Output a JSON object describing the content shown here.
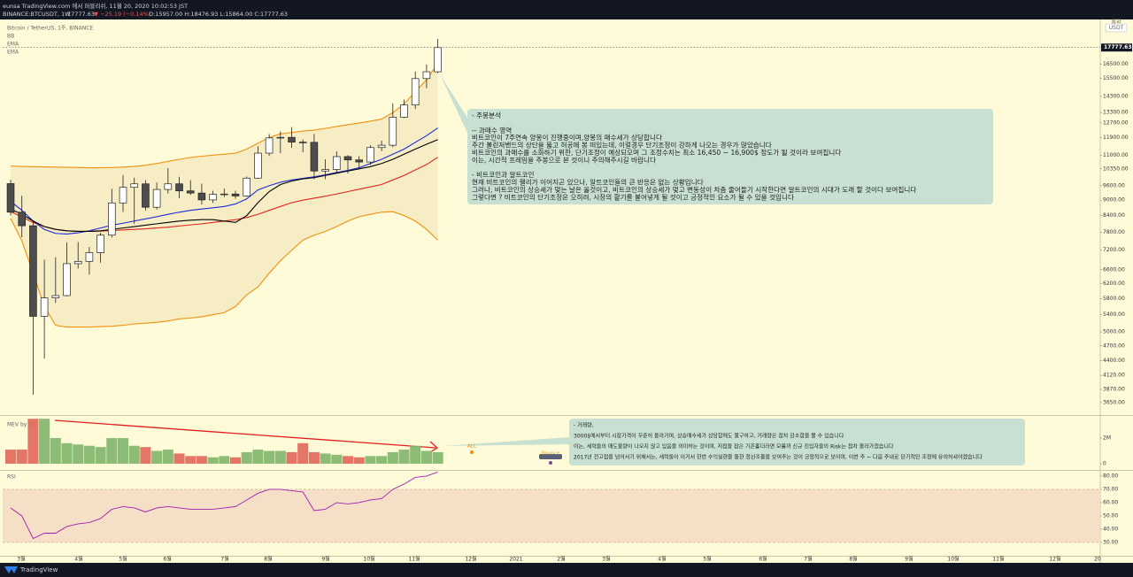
{
  "header": {
    "line1": "eunsa TradingView.com 에서 퍼블리쉬, 11월 20, 2020 10:02:53 JST",
    "symbol": "BINANCE:BTCUSDT, 1W",
    "price": "17777.63",
    "change": "▼ −25.19 (−0.14%)",
    "ohlc": "O:15957.00 H:18476.93 L:15864.00 C:17777.63",
    "currency_caption": "통화",
    "currency": "USDT"
  },
  "chart_data": [
    {
      "type": "candlestick",
      "title": "Bitcoin / TetherUS, 1주, BINANCE",
      "log_scale": true,
      "grid": false,
      "categories": [
        null,
        null,
        null,
        null,
        null,
        null,
        null,
        null,
        null,
        null,
        null,
        null,
        null,
        null,
        null,
        null,
        null,
        null,
        null,
        null,
        null,
        null,
        null,
        null,
        null,
        null,
        null,
        null,
        null,
        null,
        null,
        null,
        null,
        null,
        null,
        null,
        null,
        null,
        null
      ],
      "open": [
        9690,
        8530,
        8030,
        5360,
        5820,
        5880,
        6780,
        6850,
        7120,
        7700,
        8890,
        9530,
        9680,
        8720,
        9440,
        9680,
        9380,
        9290,
        9010,
        9240,
        9250,
        9170,
        9930,
        11100,
        11880,
        11910,
        11660,
        11650,
        10250,
        10320,
        10930,
        10770,
        10670,
        11380,
        11500,
        13030,
        13760,
        15480,
        15957
      ],
      "high": [
        9860,
        9180,
        8180,
        6900,
        6980,
        7460,
        7470,
        7300,
        7780,
        9470,
        10070,
        9950,
        9840,
        9740,
        10380,
        9990,
        9840,
        9690,
        9380,
        9480,
        9390,
        10000,
        11450,
        12090,
        12230,
        12470,
        11800,
        12090,
        10800,
        11180,
        11000,
        10950,
        11500,
        11730,
        13860,
        14100,
        15970,
        16480,
        18476.93
      ],
      "low": [
        8410,
        7630,
        3780,
        4440,
        5690,
        5860,
        6640,
        6460,
        6810,
        7620,
        8540,
        8100,
        8600,
        8630,
        9270,
        9080,
        9210,
        8830,
        8890,
        9130,
        9060,
        9140,
        9900,
        10960,
        11100,
        11370,
        11150,
        9880,
        9880,
        10200,
        10140,
        10370,
        10530,
        11200,
        11400,
        12980,
        13520,
        14830,
        15864
      ],
      "close": [
        8530,
        8030,
        5360,
        5820,
        5880,
        6780,
        6850,
        7120,
        7700,
        8890,
        9530,
        9680,
        8720,
        9440,
        9680,
        9380,
        9290,
        9010,
        9240,
        9250,
        9170,
        9930,
        11100,
        11880,
        11910,
        11660,
        11650,
        10250,
        10320,
        10930,
        10770,
        10670,
        11380,
        11500,
        13030,
        13760,
        15480,
        15960,
        17777.63
      ],
      "up_color": "#ffffff",
      "down_color": "#4d4d4d",
      "outline_color": "#222222",
      "series": [
        {
          "name": "BB",
          "color": "#e0251f",
          "band_color": "#f0900f",
          "fill": "#f6edc4",
          "values": [
            8550,
            8350,
            8150,
            8000,
            7900,
            7850,
            7830,
            7830,
            7840,
            7860,
            7880,
            7900,
            7920,
            7950,
            7980,
            8020,
            8060,
            8100,
            8150,
            8200,
            8250,
            8330,
            8450,
            8600,
            8750,
            8900,
            9000,
            9080,
            9160,
            9250,
            9350,
            9450,
            9550,
            9650,
            9850,
            10050,
            10300,
            10550,
            10900
          ],
          "upper": [
            10480,
            10460,
            10450,
            10440,
            10430,
            10420,
            10410,
            10400,
            10400,
            10410,
            10430,
            10460,
            10520,
            10600,
            10700,
            10800,
            10890,
            10950,
            11000,
            11050,
            11100,
            11300,
            11600,
            11900,
            12100,
            12170,
            12250,
            12300,
            12400,
            12500,
            12600,
            12700,
            12800,
            12920,
            13300,
            13820,
            14600,
            15400,
            16560
          ],
          "lower": [
            8300,
            7500,
            6500,
            5600,
            5150,
            5110,
            5110,
            5110,
            5120,
            5130,
            5150,
            5180,
            5200,
            5220,
            5250,
            5300,
            5320,
            5350,
            5400,
            5450,
            5600,
            5900,
            6110,
            6500,
            6870,
            7200,
            7530,
            7700,
            7830,
            8000,
            8200,
            8360,
            8450,
            8530,
            8550,
            8400,
            8200,
            7900,
            7530
          ]
        },
        {
          "name": "EMA",
          "color": "#1c2bd8",
          "values": [
            8950,
            8600,
            8200,
            7900,
            7760,
            7740,
            7780,
            7850,
            7950,
            8050,
            8120,
            8200,
            8280,
            8360,
            8450,
            8530,
            8600,
            8650,
            8700,
            8750,
            8850,
            9050,
            9420,
            9600,
            9750,
            9850,
            9920,
            9990,
            10080,
            10180,
            10280,
            10400,
            10600,
            10800,
            11050,
            11300,
            11650,
            12000,
            12420
          ]
        },
        {
          "name": "EMA",
          "color": "#000000",
          "values": [
            8650,
            8450,
            8200,
            8000,
            7900,
            7850,
            7830,
            7830,
            7850,
            7900,
            7950,
            8000,
            8050,
            8100,
            8150,
            8200,
            8230,
            8250,
            8250,
            8200,
            8150,
            8400,
            8900,
            9350,
            9650,
            9800,
            9900,
            9950,
            10050,
            10150,
            10250,
            10350,
            10450,
            10600,
            10800,
            11050,
            11300,
            11550,
            11790
          ]
        }
      ],
      "xlim": [
        -0.71,
        96.93
      ],
      "ylim": [
        3465,
        20150
      ],
      "yticks": [
        {
          "value": 16500,
          "label": "16500.00"
        },
        {
          "value": 15500,
          "label": "15500.00"
        },
        {
          "value": 14300,
          "label": "14300.00"
        },
        {
          "value": 13300,
          "label": "13300.00"
        },
        {
          "value": 12700,
          "label": "12700.00"
        },
        {
          "value": 11900,
          "label": "11900.00"
        },
        {
          "value": 11000,
          "label": "11000.00"
        },
        {
          "value": 10350,
          "label": "10350.00"
        },
        {
          "value": 9600,
          "label": "9600.00"
        },
        {
          "value": 9000,
          "label": "9000.00"
        },
        {
          "value": 8400,
          "label": "8400.00"
        },
        {
          "value": 7800,
          "label": "7800.00"
        },
        {
          "value": 7200,
          "label": "7200.00"
        },
        {
          "value": 6600,
          "label": "6600.00"
        },
        {
          "value": 6200,
          "label": "6200.00"
        },
        {
          "value": 5800,
          "label": "5800.00"
        },
        {
          "value": 5400,
          "label": "5400.00"
        },
        {
          "value": 5000,
          "label": "5000.00"
        },
        {
          "value": 4700,
          "label": "4700.00"
        },
        {
          "value": 4400,
          "label": "4400.00"
        },
        {
          "value": 4120,
          "label": "4120.00"
        },
        {
          "value": 3870,
          "label": "3870.00"
        },
        {
          "value": 3650,
          "label": "3650.00"
        }
      ]
    },
    {
      "type": "bar",
      "title": "MEV by PE",
      "up_color": "#7fb56c",
      "down_color": "#e0675b",
      "values": [
        1100000,
        1100000,
        3500000,
        3500000,
        2000000,
        1600000,
        1500000,
        1400000,
        1300000,
        2000000,
        2000000,
        1400000,
        1300000,
        1000000,
        1100000,
        800000,
        600000,
        600000,
        500000,
        600000,
        500000,
        900000,
        1100000,
        1000000,
        1000000,
        900000,
        1600000,
        900000,
        800000,
        700000,
        600000,
        500000,
        600000,
        600000,
        900000,
        1100000,
        1400000,
        1000000,
        900000
      ],
      "ylim": [
        -410000,
        3720000
      ],
      "yticks": [
        0,
        {
          "value": 2000000,
          "label": "2M"
        }
      ]
    },
    {
      "type": "line",
      "title": "RSI",
      "color": "#a020b0",
      "band": [
        30,
        70
      ],
      "band_color": "#f5dfc6",
      "values": [
        56,
        50,
        33,
        37,
        37,
        42,
        44,
        45,
        48,
        55,
        57,
        56,
        53,
        56,
        57,
        56,
        55,
        55,
        55,
        56,
        57,
        62,
        67,
        70,
        70,
        69,
        68,
        54,
        55,
        60,
        59,
        60,
        62,
        63,
        70,
        74,
        79,
        80,
        83
      ],
      "ylim": [
        20,
        83.3
      ],
      "yticks": [
        {
          "value": 80,
          "label": "80.00"
        },
        {
          "value": 70,
          "label": "70.00"
        },
        {
          "value": 60,
          "label": "60.00"
        },
        {
          "value": 50,
          "label": "50.00"
        },
        {
          "value": 40,
          "label": "40.00"
        },
        {
          "value": 30,
          "label": "30.00"
        }
      ],
      "xlim": [
        -0.71,
        96.93
      ],
      "xticks": [
        {
          "value": 0.94,
          "label": "3월"
        },
        {
          "value": 6.06,
          "label": "4월"
        },
        {
          "value": 10.0,
          "label": "5월"
        },
        {
          "value": 13.94,
          "label": "6월"
        },
        {
          "value": 19.06,
          "label": "7월"
        },
        {
          "value": 22.91,
          "label": "8월"
        },
        {
          "value": 28.03,
          "label": "9월"
        },
        {
          "value": 31.89,
          "label": "10월"
        },
        {
          "value": 35.91,
          "label": "11월"
        },
        {
          "value": 40.94,
          "label": "12월"
        },
        {
          "value": 44.96,
          "label": "2021"
        },
        {
          "value": 48.98,
          "label": "2월"
        },
        {
          "value": 52.99,
          "label": "3월"
        },
        {
          "value": 57.95,
          "label": "4월"
        },
        {
          "value": 61.97,
          "label": "5월"
        },
        {
          "value": 66.93,
          "label": "6월"
        },
        {
          "value": 70.94,
          "label": "7월"
        },
        {
          "value": 74.96,
          "label": "8월"
        },
        {
          "value": 79.92,
          "label": "9월"
        },
        {
          "value": 83.86,
          "label": "10월"
        },
        {
          "value": 87.87,
          "label": "11월"
        },
        {
          "value": 92.91,
          "label": "12월"
        },
        {
          "value": 96.69,
          "label": "20"
        }
      ]
    }
  ],
  "legend_labels": [
    "BB",
    "EMA",
    "EMA"
  ],
  "annotations": [
    {
      "blocks": [
        [
          "- 주봉분석"
        ],
        [
          "-- 과매수 영역",
          "비트코인이 7주연속 양봉이 진행중이며,양봉의 매수세가 상당합니다",
          "주간 볼린저밴드의 상단을 뚫고 허공에 봉 떠있는데, 이럴경우 단기조정이 강하게 나오는 경우가 많았습니다",
          "비트코인의 과매수를 소화하기 위한, 단기조정이 예상되오며 그 조정수치는 최소 16,450 ~ 16,900$ 정도가 될 것이라 보여집니다",
          "이는, 시간적 프레임을 주봉으로 본 것이니 주의해주시길 바랍니다"
        ],
        [
          "- 비트코인과 알트코인",
          "현재 비트코인의 랠리가 이어지곤 있으나, 알트코인들의 큰 반응은 없는 상황입니다",
          "그러나, 비트코인의 상승세가 멎는 날은 올것이고, 비트코인의 상승세가 멎고 변동성이 차츰 줄어들기 시작한다면 알트코인의 시대가 도래 할 것이다 보여집니다",
          "그렇다면 ? 비트코인의 단기조정은 오히려, 시장의 활기를 불어넣게 될 것이고 긍정적인 요소가 될 수 있을 것입니다"
        ]
      ]
    },
    {
      "blocks": [
        [
          "- 거래량,",
          "3000$에서부터 시장가격이 꾸준히 올라가며, 상승매수세가 상당함에도 불구하고, 거래량은 점차 감소함을 볼 수 있습니다",
          "이는, 세력들의 매도물량이 나오지 않고 있음을 의미하는 것이며, 저점을 잡은 기존홀더라면 모를까 신규 진입자들의 Risk는 점차 올라가겠습니다",
          "2017년 전고점을 넘어서기 위해서는, 세력들이 이거서 한번 수익실현을 통한 정산조율을 보여주는 것이 긍정적으로 보이며, 이번 주 ~ 다음 주내로 단기적인 조정에 유의하셔야겠습니다"
        ]
      ]
    }
  ],
  "markers": {
    "all": "ALL",
    "exchange": "Binance"
  },
  "footer": {
    "brand": "TradingView"
  }
}
